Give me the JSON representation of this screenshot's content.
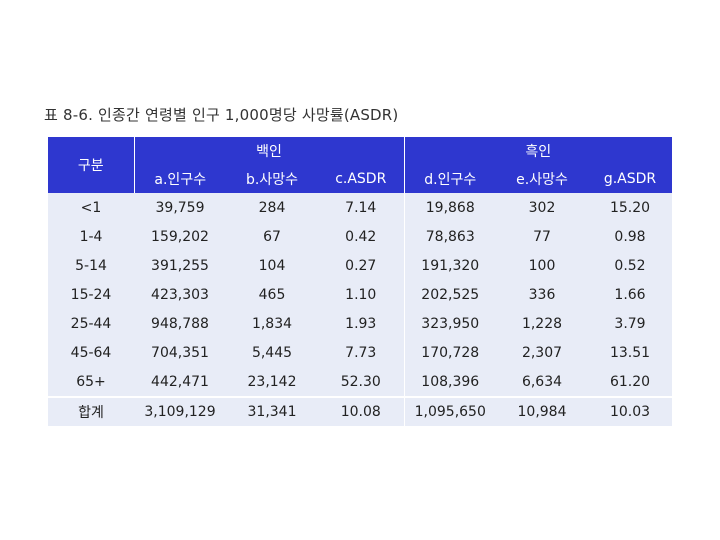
{
  "caption": "표 8-6. 인종간 연령별 인구 1,000명당 사망률(ASDR)",
  "header": {
    "gubun": "구분",
    "group_white": "백인",
    "group_black": "흑인",
    "columns": [
      "a.인구수",
      "b.사망수",
      "c.ASDR",
      "d.인구수",
      "e.사망수",
      "g.ASDR"
    ]
  },
  "rows": [
    [
      "<1",
      "39,759",
      "284",
      "7.14",
      "19,868",
      "302",
      "15.20"
    ],
    [
      "1-4",
      "159,202",
      "67",
      "0.42",
      "78,863",
      "77",
      "0.98"
    ],
    [
      "5-14",
      "391,255",
      "104",
      "0.27",
      "191,320",
      "100",
      "0.52"
    ],
    [
      "15-24",
      "423,303",
      "465",
      "1.10",
      "202,525",
      "336",
      "1.66"
    ],
    [
      "25-44",
      "948,788",
      "1,834",
      "1.93",
      "323,950",
      "1,228",
      "3.79"
    ],
    [
      "45-64",
      "704,351",
      "5,445",
      "7.73",
      "170,728",
      "2,307",
      "13.51"
    ],
    [
      "65+",
      "442,471",
      "23,142",
      "52.30",
      "108,396",
      "6,634",
      "61.20"
    ]
  ],
  "total": [
    "합계",
    "3,109,129",
    "31,341",
    "10.08",
    "1,095,650",
    "10,984",
    "10.03"
  ]
}
